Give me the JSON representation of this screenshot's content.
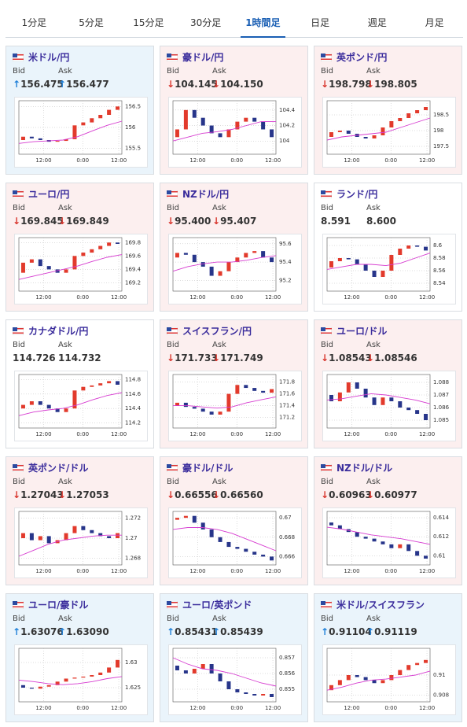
{
  "tabs": {
    "items": [
      "1分足",
      "5分足",
      "15分足",
      "30分足",
      "1時間足",
      "日足",
      "週足",
      "月足"
    ],
    "active": 4
  },
  "labels": {
    "bid": "Bid",
    "ask": "Ask"
  },
  "xlabels": [
    "12:00",
    "0:00",
    "12:00"
  ],
  "cards": [
    {
      "title": "米ドル/円",
      "arrow": "↑",
      "bid": "156.475",
      "ask": "156.477",
      "chart": {
        "ylim": [
          155.4,
          156.6
        ],
        "yticks": [
          155.5,
          156,
          156.5
        ],
        "open": [
          155.7,
          155.78,
          155.74,
          155.7,
          155.66,
          155.68,
          155.72,
          156.05,
          156.12,
          156.22,
          156.3,
          156.42
        ],
        "close": [
          155.78,
          155.74,
          155.7,
          155.66,
          155.68,
          155.72,
          156.05,
          156.12,
          156.22,
          156.3,
          156.42,
          156.5
        ],
        "ma": [
          155.62,
          155.66,
          155.68,
          155.7,
          155.78,
          155.92,
          156.05,
          156.15
        ]
      }
    },
    {
      "title": "豪ドル/円",
      "arrow": "↓",
      "bid": "104.145",
      "ask": "104.150",
      "chart": {
        "ylim": [
          103.85,
          104.5
        ],
        "yticks": [
          104,
          104.2,
          104.4
        ],
        "open": [
          104.05,
          104.15,
          104.4,
          104.3,
          104.2,
          104.1,
          104.05,
          104.15,
          104.25,
          104.3,
          104.25,
          104.15
        ],
        "close": [
          104.15,
          104.4,
          104.3,
          104.2,
          104.1,
          104.05,
          104.15,
          104.25,
          104.3,
          104.25,
          104.15,
          104.05
        ],
        "ma": [
          104.0,
          104.05,
          104.1,
          104.12,
          104.15,
          104.2,
          104.25,
          104.25
        ]
      }
    },
    {
      "title": "英ポンド/円",
      "arrow": "↓",
      "bid": "198.798",
      "ask": "198.805",
      "chart": {
        "ylim": [
          197.3,
          198.9
        ],
        "yticks": [
          197.5,
          198,
          198.5
        ],
        "open": [
          197.8,
          197.95,
          198.0,
          197.9,
          197.8,
          197.75,
          197.85,
          198.1,
          198.3,
          198.4,
          198.55,
          198.65
        ],
        "close": [
          197.95,
          198.0,
          197.9,
          197.8,
          197.75,
          197.85,
          198.1,
          198.3,
          198.4,
          198.55,
          198.65,
          198.75
        ],
        "ma": [
          197.7,
          197.8,
          197.85,
          197.9,
          197.95,
          198.1,
          198.25,
          198.4
        ]
      }
    },
    {
      "title": "ユーロ/円",
      "arrow": "↓",
      "bid": "169.845",
      "ask": "169.849",
      "chart": {
        "ylim": [
          169.1,
          169.85
        ],
        "yticks": [
          169.2,
          169.4,
          169.6,
          169.8
        ],
        "open": [
          169.35,
          169.5,
          169.55,
          169.45,
          169.4,
          169.35,
          169.4,
          169.6,
          169.65,
          169.7,
          169.75,
          169.8
        ],
        "close": [
          169.5,
          169.55,
          169.45,
          169.4,
          169.35,
          169.4,
          169.6,
          169.65,
          169.7,
          169.75,
          169.8,
          169.78
        ],
        "ma": [
          169.25,
          169.3,
          169.35,
          169.4,
          169.45,
          169.52,
          169.58,
          169.62
        ]
      }
    },
    {
      "title": "NZドル/円",
      "arrow": "↓",
      "bid": "95.400",
      "ask": "95.407",
      "chart": {
        "ylim": [
          95.1,
          95.65
        ],
        "yticks": [
          95.2,
          95.4,
          95.6
        ],
        "open": [
          95.45,
          95.5,
          95.48,
          95.4,
          95.35,
          95.25,
          95.3,
          95.4,
          95.45,
          95.5,
          95.52,
          95.45
        ],
        "close": [
          95.5,
          95.48,
          95.4,
          95.35,
          95.25,
          95.3,
          95.4,
          95.45,
          95.5,
          95.52,
          95.45,
          95.4
        ],
        "ma": [
          95.3,
          95.35,
          95.38,
          95.4,
          95.4,
          95.42,
          95.45,
          95.47
        ]
      }
    },
    {
      "title": "ランド/円",
      "bid": "8.591",
      "ask": "8.600",
      "chart": {
        "ylim": [
          8.53,
          8.61
        ],
        "yticks": [
          8.54,
          8.56,
          8.58,
          8.6
        ],
        "open": [
          8.565,
          8.575,
          8.58,
          8.578,
          8.57,
          8.56,
          8.55,
          8.56,
          8.585,
          8.595,
          8.6,
          8.598
        ],
        "close": [
          8.575,
          8.58,
          8.578,
          8.57,
          8.56,
          8.55,
          8.56,
          8.585,
          8.595,
          8.6,
          8.598,
          8.592
        ],
        "ma": [
          8.562,
          8.566,
          8.57,
          8.57,
          8.568,
          8.572,
          8.58,
          8.588
        ]
      }
    },
    {
      "title": "カナダドル/円",
      "bid": "114.726",
      "ask": "114.732",
      "chart": {
        "ylim": [
          114.15,
          114.85
        ],
        "yticks": [
          114.2,
          114.4,
          114.6,
          114.8
        ],
        "open": [
          114.4,
          114.45,
          114.5,
          114.45,
          114.4,
          114.35,
          114.4,
          114.65,
          114.7,
          114.72,
          114.75,
          114.78
        ],
        "close": [
          114.45,
          114.5,
          114.45,
          114.4,
          114.35,
          114.4,
          114.65,
          114.7,
          114.72,
          114.75,
          114.78,
          114.73
        ],
        "ma": [
          114.3,
          114.35,
          114.38,
          114.4,
          114.45,
          114.52,
          114.58,
          114.62
        ]
      }
    },
    {
      "title": "スイスフラン/円",
      "arrow": "↓",
      "bid": "171.733",
      "ask": "171.749",
      "chart": {
        "ylim": [
          171.05,
          171.9
        ],
        "yticks": [
          171.2,
          171.4,
          171.6,
          171.8
        ],
        "open": [
          171.4,
          171.45,
          171.38,
          171.35,
          171.3,
          171.25,
          171.3,
          171.6,
          171.75,
          171.7,
          171.65,
          171.62
        ],
        "close": [
          171.45,
          171.38,
          171.35,
          171.3,
          171.25,
          171.3,
          171.6,
          171.75,
          171.7,
          171.65,
          171.62,
          171.68
        ],
        "ma": [
          171.4,
          171.4,
          171.38,
          171.36,
          171.38,
          171.45,
          171.5,
          171.55
        ]
      }
    },
    {
      "title": "ユーロ/ドル",
      "arrow": "↓",
      "bid": "1.08543",
      "ask": "1.08546",
      "chart": {
        "ylim": [
          1.0845,
          1.0885
        ],
        "yticks": [
          1.085,
          1.086,
          1.087,
          1.088
        ],
        "open": [
          1.087,
          1.0865,
          1.0872,
          1.088,
          1.0875,
          1.0868,
          1.0862,
          1.0868,
          1.0865,
          1.086,
          1.0858,
          1.0855
        ],
        "close": [
          1.0865,
          1.0872,
          1.088,
          1.0875,
          1.0868,
          1.0862,
          1.0868,
          1.0865,
          1.086,
          1.0858,
          1.0855,
          1.085
        ],
        "ma": [
          1.0866,
          1.0867,
          1.0869,
          1.0871,
          1.087,
          1.0868,
          1.0866,
          1.0863
        ]
      }
    },
    {
      "title": "英ポンド/ドル",
      "arrow": "↓",
      "bid": "1.27043",
      "ask": "1.27053",
      "chart": {
        "ylim": [
          1.2675,
          1.2725
        ],
        "yticks": [
          1.268,
          1.27,
          1.272
        ],
        "open": [
          1.27,
          1.2705,
          1.2698,
          1.2702,
          1.2695,
          1.2698,
          1.2705,
          1.2712,
          1.2708,
          1.2705,
          1.2702,
          1.27
        ],
        "close": [
          1.2705,
          1.2698,
          1.2702,
          1.2695,
          1.2698,
          1.2705,
          1.2712,
          1.2708,
          1.2705,
          1.2702,
          1.27,
          1.2705
        ],
        "ma": [
          1.2682,
          1.2688,
          1.2694,
          1.2698,
          1.27,
          1.2702,
          1.2703,
          1.2703
        ]
      }
    },
    {
      "title": "豪ドル/ドル",
      "arrow": "↓",
      "bid": "0.66556",
      "ask": "0.66560",
      "chart": {
        "ylim": [
          0.6653,
          0.6705
        ],
        "yticks": [
          0.666,
          0.668,
          0.67
        ],
        "open": [
          0.6698,
          0.67,
          0.6702,
          0.6695,
          0.6688,
          0.668,
          0.6675,
          0.667,
          0.6668,
          0.6665,
          0.6662,
          0.666
        ],
        "close": [
          0.67,
          0.6702,
          0.6695,
          0.6688,
          0.668,
          0.6675,
          0.667,
          0.6668,
          0.6665,
          0.6662,
          0.666,
          0.6656
        ],
        "ma": [
          0.6688,
          0.669,
          0.669,
          0.6688,
          0.6684,
          0.6678,
          0.6672,
          0.6666
        ]
      }
    },
    {
      "title": "NZドル/ドル",
      "arrow": "↓",
      "bid": "0.60963",
      "ask": "0.60977",
      "chart": {
        "ylim": [
          0.6092,
          0.6145
        ],
        "yticks": [
          0.61,
          0.612,
          0.614
        ],
        "open": [
          0.6135,
          0.6132,
          0.6128,
          0.6125,
          0.612,
          0.6118,
          0.6115,
          0.6112,
          0.6108,
          0.6112,
          0.6105,
          0.61
        ],
        "close": [
          0.6132,
          0.6128,
          0.6125,
          0.612,
          0.6118,
          0.6115,
          0.6112,
          0.6108,
          0.6112,
          0.6105,
          0.61,
          0.6097
        ],
        "ma": [
          0.613,
          0.6128,
          0.6125,
          0.6122,
          0.612,
          0.6118,
          0.6115,
          0.6112
        ]
      }
    },
    {
      "title": "ユーロ/豪ドル",
      "arrow": "↑",
      "bid": "1.63076",
      "ask": "1.63090",
      "chart": {
        "ylim": [
          1.6225,
          1.6325
        ],
        "yticks": [
          1.625,
          1.63
        ],
        "open": [
          1.6255,
          1.625,
          1.6248,
          1.6252,
          1.6255,
          1.6262,
          1.6268,
          1.627,
          1.6272,
          1.6275,
          1.628,
          1.629
        ],
        "close": [
          1.625,
          1.6248,
          1.6252,
          1.6255,
          1.6262,
          1.6268,
          1.627,
          1.6272,
          1.6275,
          1.628,
          1.629,
          1.6305
        ],
        "ma": [
          1.6265,
          1.6262,
          1.6258,
          1.6256,
          1.6258,
          1.6262,
          1.6268,
          1.6272
        ]
      }
    },
    {
      "title": "ユーロ/英ポンド",
      "arrow": "↑",
      "bid": "0.85431",
      "ask": "0.85439",
      "chart": {
        "ylim": [
          0.8543,
          0.8575
        ],
        "yticks": [
          0.855,
          0.856,
          0.857
        ],
        "open": [
          0.8565,
          0.8562,
          0.856,
          0.8563,
          0.8566,
          0.856,
          0.8555,
          0.855,
          0.8548,
          0.8547,
          0.8546,
          0.8547
        ],
        "close": [
          0.8562,
          0.856,
          0.8563,
          0.8566,
          0.856,
          0.8555,
          0.855,
          0.8548,
          0.8547,
          0.8546,
          0.8547,
          0.8545
        ],
        "ma": [
          0.857,
          0.8566,
          0.8563,
          0.8562,
          0.856,
          0.8557,
          0.8554,
          0.8552
        ]
      }
    },
    {
      "title": "米ドル/スイスフラン",
      "arrow": "↑",
      "bid": "0.91104",
      "ask": "0.91119",
      "chart": {
        "ylim": [
          0.9075,
          0.9125
        ],
        "yticks": [
          0.908,
          0.91
        ],
        "open": [
          0.9085,
          0.909,
          0.9095,
          0.91,
          0.9098,
          0.9095,
          0.9092,
          0.9095,
          0.91,
          0.9105,
          0.911,
          0.9112
        ],
        "close": [
          0.909,
          0.9095,
          0.91,
          0.9098,
          0.9095,
          0.9092,
          0.9095,
          0.91,
          0.9105,
          0.911,
          0.9112,
          0.9115
        ],
        "ma": [
          0.9085,
          0.9088,
          0.9092,
          0.9095,
          0.9096,
          0.9098,
          0.91,
          0.9104
        ]
      }
    }
  ]
}
